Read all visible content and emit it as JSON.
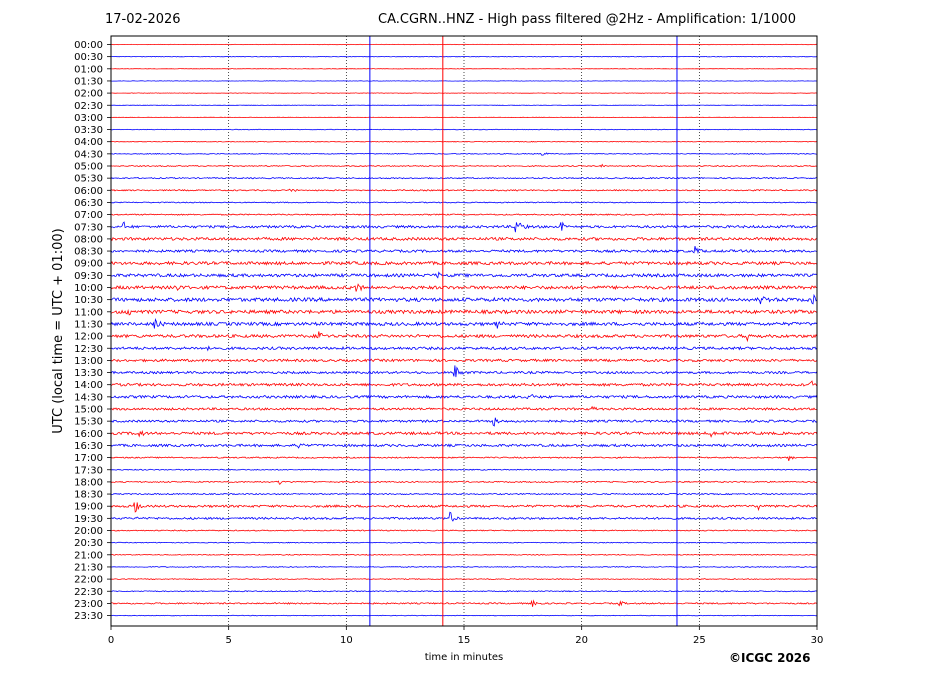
{
  "header": {
    "date": "17-02-2026",
    "title": "CA.CGRN..HNZ - High pass filtered @2Hz - Amplification: 1/1000"
  },
  "credit": "©ICGC 2026",
  "chart_data": {
    "type": "line",
    "title": "CA.CGRN..HNZ - High pass filtered @2Hz - Amplification: 1/1000",
    "xlabel": "time in minutes",
    "ylabel": "UTC (local time = UTC + 01:00)",
    "xlim": [
      0,
      30
    ],
    "xticks": [
      0,
      5,
      10,
      15,
      20,
      25,
      30
    ],
    "grid": "vertical dotted at 5-minute ticks",
    "trace_colors": [
      "#ff0000",
      "#0000ff"
    ],
    "rows": [
      "00:00",
      "00:30",
      "01:00",
      "01:30",
      "02:00",
      "02:30",
      "03:00",
      "03:30",
      "04:00",
      "04:30",
      "05:00",
      "05:30",
      "06:00",
      "06:30",
      "07:00",
      "07:30",
      "08:00",
      "08:30",
      "09:00",
      "09:30",
      "10:00",
      "10:30",
      "11:00",
      "11:30",
      "12:00",
      "12:30",
      "13:00",
      "13:30",
      "14:00",
      "14:30",
      "15:00",
      "15:30",
      "16:00",
      "16:30",
      "17:00",
      "17:30",
      "18:00",
      "18:30",
      "19:00",
      "19:30",
      "20:00",
      "20:30",
      "21:00",
      "21:30",
      "22:00",
      "22:30",
      "23:00",
      "23:30"
    ],
    "noise_level": [
      0.2,
      0.3,
      0.2,
      0.2,
      0.2,
      0.2,
      0.2,
      0.3,
      0.3,
      0.4,
      0.5,
      0.6,
      0.6,
      0.5,
      0.6,
      1.2,
      1.4,
      1.2,
      1.5,
      1.5,
      1.6,
      1.8,
      1.7,
      1.6,
      1.5,
      1.3,
      1.2,
      1.1,
      1.3,
      1.3,
      1.1,
      1.1,
      1.3,
      1.2,
      0.6,
      0.5,
      0.6,
      0.6,
      1.1,
      1.0,
      0.5,
      0.4,
      0.4,
      0.4,
      0.4,
      0.5,
      0.7,
      0.3
    ],
    "vertical_glitch_minutes": [
      11.0,
      14.1,
      24.05
    ],
    "events": [
      {
        "row": "04:30",
        "minute": 18.3,
        "amp": 3
      },
      {
        "row": "05:00",
        "minute": 20.8,
        "amp": 3
      },
      {
        "row": "06:00",
        "minute": 7.6,
        "amp": 4
      },
      {
        "row": "07:30",
        "minute": 0.5,
        "amp": 6
      },
      {
        "row": "07:30",
        "minute": 17.2,
        "amp": 14
      },
      {
        "row": "07:30",
        "minute": 19.1,
        "amp": 8
      },
      {
        "row": "08:30",
        "minute": 24.8,
        "amp": 9
      },
      {
        "row": "09:30",
        "minute": 13.9,
        "amp": 5
      },
      {
        "row": "10:00",
        "minute": 2.7,
        "amp": 8
      },
      {
        "row": "10:00",
        "minute": 10.4,
        "amp": 9
      },
      {
        "row": "10:30",
        "minute": 27.6,
        "amp": 6
      },
      {
        "row": "10:30",
        "minute": 29.8,
        "amp": 7
      },
      {
        "row": "11:00",
        "minute": 0.7,
        "amp": 5
      },
      {
        "row": "11:30",
        "minute": 1.8,
        "amp": 10
      },
      {
        "row": "11:30",
        "minute": 16.4,
        "amp": 5
      },
      {
        "row": "12:00",
        "minute": 8.8,
        "amp": 8
      },
      {
        "row": "12:00",
        "minute": 27.0,
        "amp": 7
      },
      {
        "row": "12:30",
        "minute": 4.1,
        "amp": 4
      },
      {
        "row": "13:30",
        "minute": 14.6,
        "amp": 12
      },
      {
        "row": "14:00",
        "minute": 29.7,
        "amp": 5
      },
      {
        "row": "14:30",
        "minute": 17.7,
        "amp": 5
      },
      {
        "row": "15:00",
        "minute": 20.4,
        "amp": 4
      },
      {
        "row": "15:30",
        "minute": 16.2,
        "amp": 10
      },
      {
        "row": "16:00",
        "minute": 1.2,
        "amp": 4
      },
      {
        "row": "16:00",
        "minute": 25.5,
        "amp": 5
      },
      {
        "row": "16:30",
        "minute": 8.0,
        "amp": 4
      },
      {
        "row": "17:00",
        "minute": 28.8,
        "amp": 4
      },
      {
        "row": "18:00",
        "minute": 7.1,
        "amp": 5
      },
      {
        "row": "19:00",
        "minute": 1.0,
        "amp": 9
      },
      {
        "row": "19:00",
        "minute": 27.5,
        "amp": 4
      },
      {
        "row": "19:30",
        "minute": 1.1,
        "amp": 3
      },
      {
        "row": "19:30",
        "minute": 14.4,
        "amp": 7
      },
      {
        "row": "23:00",
        "minute": 17.9,
        "amp": 4
      },
      {
        "row": "23:00",
        "minute": 21.6,
        "amp": 3
      }
    ]
  }
}
